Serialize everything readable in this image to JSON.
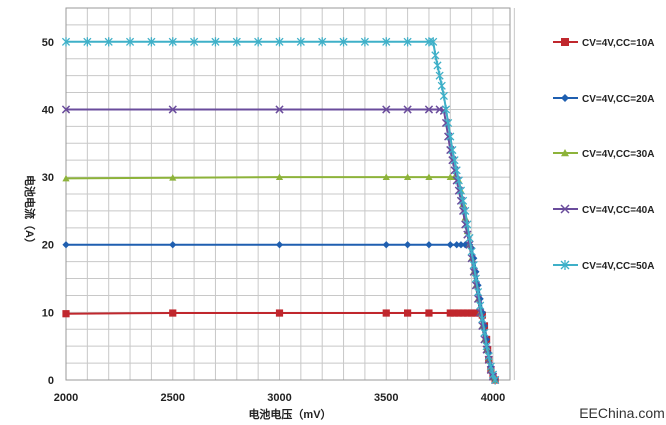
{
  "chart_data": {
    "type": "line",
    "title": "",
    "xlabel": "电池电压（mV）",
    "ylabel": "电池电流（A）",
    "xlim": [
      2000,
      4100
    ],
    "ylim": [
      0,
      55
    ],
    "x_ticks": [
      2000,
      2500,
      3000,
      3500,
      4000
    ],
    "y_ticks": [
      0,
      10,
      20,
      30,
      40,
      50
    ],
    "grid": true,
    "legend_position": "right",
    "series": [
      {
        "name": "CV=4V,CC=10A",
        "color": "#c0272d",
        "marker": "square",
        "points": [
          [
            2000,
            9.8
          ],
          [
            2500,
            9.9
          ],
          [
            3000,
            9.9
          ],
          [
            3500,
            9.9
          ],
          [
            3600,
            9.9
          ],
          [
            3700,
            9.9
          ],
          [
            3800,
            9.9
          ],
          [
            3820,
            9.9
          ],
          [
            3840,
            9.9
          ],
          [
            3860,
            9.9
          ],
          [
            3880,
            9.9
          ],
          [
            3900,
            9.9
          ],
          [
            3920,
            9.9
          ],
          [
            3940,
            9.9
          ],
          [
            3950,
            9.6
          ],
          [
            3960,
            8
          ],
          [
            3970,
            6
          ],
          [
            3975,
            4.5
          ],
          [
            3980,
            3
          ],
          [
            3990,
            1.5
          ],
          [
            4000,
            0.5
          ],
          [
            4010,
            0
          ]
        ]
      },
      {
        "name": "CV=4V,CC=20A",
        "color": "#1f5fb0",
        "marker": "diamond",
        "points": [
          [
            2000,
            20
          ],
          [
            2500,
            20
          ],
          [
            3000,
            20
          ],
          [
            3500,
            20
          ],
          [
            3600,
            20
          ],
          [
            3700,
            20
          ],
          [
            3800,
            20
          ],
          [
            3830,
            20
          ],
          [
            3850,
            20
          ],
          [
            3870,
            20
          ],
          [
            3890,
            20
          ],
          [
            3900,
            19.5
          ],
          [
            3910,
            18
          ],
          [
            3920,
            16
          ],
          [
            3930,
            14
          ],
          [
            3940,
            12
          ],
          [
            3950,
            10
          ],
          [
            3960,
            8
          ],
          [
            3970,
            6
          ],
          [
            3980,
            4
          ],
          [
            3990,
            2
          ],
          [
            4000,
            0.8
          ],
          [
            4010,
            0
          ]
        ]
      },
      {
        "name": "CV=4V,CC=30A",
        "color": "#8db33a",
        "marker": "triangle",
        "points": [
          [
            2000,
            29.8
          ],
          [
            2500,
            29.9
          ],
          [
            3000,
            30
          ],
          [
            3500,
            30
          ],
          [
            3600,
            30
          ],
          [
            3700,
            30
          ],
          [
            3800,
            30
          ],
          [
            3820,
            30
          ],
          [
            3840,
            29.5
          ],
          [
            3850,
            28
          ],
          [
            3860,
            26
          ],
          [
            3870,
            24
          ],
          [
            3880,
            22
          ],
          [
            3890,
            20
          ],
          [
            3900,
            18
          ],
          [
            3910,
            16
          ],
          [
            3920,
            14
          ],
          [
            3930,
            12
          ],
          [
            3940,
            10
          ],
          [
            3950,
            8
          ],
          [
            3960,
            6
          ],
          [
            3970,
            4.5
          ],
          [
            3980,
            3
          ],
          [
            3990,
            1.5
          ],
          [
            4000,
            0.5
          ],
          [
            4010,
            0
          ]
        ]
      },
      {
        "name": "CV=4V,CC=40A",
        "color": "#6a4c9c",
        "marker": "x",
        "points": [
          [
            2000,
            40
          ],
          [
            2500,
            40
          ],
          [
            3000,
            40
          ],
          [
            3500,
            40
          ],
          [
            3600,
            40
          ],
          [
            3700,
            40
          ],
          [
            3750,
            40
          ],
          [
            3770,
            39.8
          ],
          [
            3780,
            38
          ],
          [
            3790,
            36
          ],
          [
            3800,
            34
          ],
          [
            3810,
            32.5
          ],
          [
            3820,
            31
          ],
          [
            3830,
            29.5
          ],
          [
            3840,
            28
          ],
          [
            3850,
            26.5
          ],
          [
            3860,
            25
          ],
          [
            3870,
            23
          ],
          [
            3880,
            21.5
          ],
          [
            3890,
            20
          ],
          [
            3900,
            18
          ],
          [
            3910,
            16
          ],
          [
            3920,
            14
          ],
          [
            3930,
            12
          ],
          [
            3940,
            10
          ],
          [
            3950,
            8
          ],
          [
            3960,
            6
          ],
          [
            3970,
            4.5
          ],
          [
            3980,
            3
          ],
          [
            3990,
            1.5
          ],
          [
            4000,
            0.5
          ],
          [
            4010,
            0
          ]
        ]
      },
      {
        "name": "CV=4V,CC=50A",
        "color": "#3fb0c8",
        "marker": "star",
        "points": [
          [
            2000,
            50
          ],
          [
            2100,
            50
          ],
          [
            2200,
            50
          ],
          [
            2300,
            50
          ],
          [
            2400,
            50
          ],
          [
            2500,
            50
          ],
          [
            2600,
            50
          ],
          [
            2700,
            50
          ],
          [
            2800,
            50
          ],
          [
            2900,
            50
          ],
          [
            3000,
            50
          ],
          [
            3100,
            50
          ],
          [
            3200,
            50
          ],
          [
            3300,
            50
          ],
          [
            3400,
            50
          ],
          [
            3500,
            50
          ],
          [
            3600,
            50
          ],
          [
            3700,
            50
          ],
          [
            3720,
            50
          ],
          [
            3730,
            48
          ],
          [
            3740,
            46.5
          ],
          [
            3750,
            45
          ],
          [
            3760,
            43.5
          ],
          [
            3770,
            42
          ],
          [
            3780,
            40
          ],
          [
            3790,
            38
          ],
          [
            3800,
            36
          ],
          [
            3810,
            34
          ],
          [
            3820,
            32.5
          ],
          [
            3830,
            31
          ],
          [
            3840,
            29.5
          ],
          [
            3850,
            28
          ],
          [
            3860,
            26.5
          ],
          [
            3870,
            25
          ],
          [
            3880,
            23
          ],
          [
            3890,
            21
          ],
          [
            3900,
            19
          ],
          [
            3910,
            17
          ],
          [
            3920,
            15
          ],
          [
            3930,
            13
          ],
          [
            3940,
            11
          ],
          [
            3950,
            9
          ],
          [
            3960,
            7
          ],
          [
            3970,
            5
          ],
          [
            3980,
            3.5
          ],
          [
            3990,
            2
          ],
          [
            4000,
            0.8
          ],
          [
            4010,
            0
          ]
        ]
      }
    ]
  },
  "watermark": "EEChina.com"
}
